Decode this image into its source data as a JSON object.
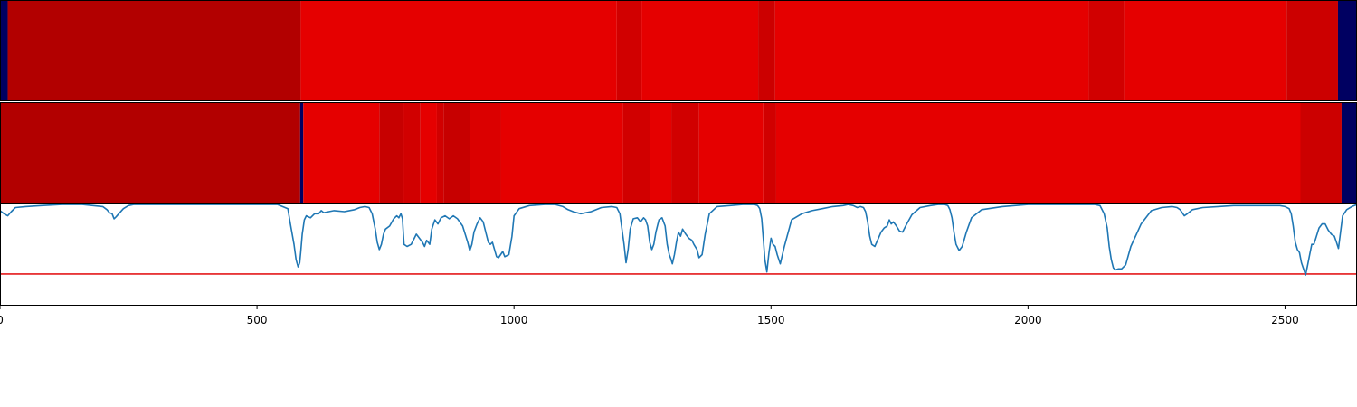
{
  "chart_data": [
    {
      "type": "heatmap",
      "colormap": "seismic",
      "segments": [
        {
          "x0": 0,
          "x1": 15,
          "value": 0.03
        },
        {
          "x0": 15,
          "x1": 585,
          "value": 0.9
        },
        {
          "x0": 585,
          "x1": 1200,
          "value": 0.8
        },
        {
          "x0": 1200,
          "x1": 1248,
          "value": 0.84
        },
        {
          "x0": 1248,
          "x1": 1475,
          "value": 0.8
        },
        {
          "x0": 1475,
          "x1": 1508,
          "value": 0.85
        },
        {
          "x0": 1508,
          "x1": 2118,
          "value": 0.8
        },
        {
          "x0": 2118,
          "x1": 2187,
          "value": 0.84
        },
        {
          "x0": 2187,
          "x1": 2503,
          "value": 0.8
        },
        {
          "x0": 2503,
          "x1": 2603,
          "value": 0.85
        },
        {
          "x0": 2603,
          "x1": 2640,
          "value": 0.03
        }
      ]
    },
    {
      "type": "heatmap",
      "colormap": "seismic",
      "segments": [
        {
          "x0": 0,
          "x1": 584,
          "value": 0.9
        },
        {
          "x0": 584,
          "x1": 590,
          "value": 0.03
        },
        {
          "x0": 590,
          "x1": 738,
          "value": 0.8
        },
        {
          "x0": 738,
          "x1": 785,
          "value": 0.86
        },
        {
          "x0": 785,
          "x1": 818,
          "value": 0.84
        },
        {
          "x0": 818,
          "x1": 850,
          "value": 0.8
        },
        {
          "x0": 850,
          "x1": 863,
          "value": 0.84
        },
        {
          "x0": 863,
          "x1": 915,
          "value": 0.86
        },
        {
          "x0": 915,
          "x1": 975,
          "value": 0.82
        },
        {
          "x0": 975,
          "x1": 1212,
          "value": 0.8
        },
        {
          "x0": 1212,
          "x1": 1265,
          "value": 0.84
        },
        {
          "x0": 1265,
          "x1": 1306,
          "value": 0.8
        },
        {
          "x0": 1306,
          "x1": 1360,
          "value": 0.84
        },
        {
          "x0": 1360,
          "x1": 1485,
          "value": 0.8
        },
        {
          "x0": 1485,
          "x1": 1510,
          "value": 0.84
        },
        {
          "x0": 1510,
          "x1": 2530,
          "value": 0.8
        },
        {
          "x0": 2530,
          "x1": 2610,
          "value": 0.85
        },
        {
          "x0": 2610,
          "x1": 2640,
          "value": 0.03
        }
      ]
    },
    {
      "type": "line",
      "xlim": [
        0,
        2640
      ],
      "ylim": [
        0,
        1
      ],
      "xticks": [
        0,
        500,
        1000,
        1500,
        2000,
        2500
      ],
      "xtick_labels": [
        "0",
        "500",
        "1000",
        "1500",
        "2000",
        "2500"
      ],
      "colors": {
        "series": "#1f77b4",
        "threshold": "#e41a1c"
      },
      "threshold": 0.31,
      "series": [
        {
          "x": [
            0,
            8,
            15,
            22,
            30,
            50,
            80,
            120,
            160,
            200,
            208,
            213,
            218,
            222,
            226,
            231,
            240,
            250,
            260,
            300,
            350,
            400,
            450,
            500,
            540,
            560,
            565,
            572,
            576,
            580,
            583,
            585,
            588,
            592,
            596,
            604,
            612,
            620,
            625,
            630,
            640,
            650,
            670,
            690,
            700,
            710,
            718,
            724,
            730,
            734,
            738,
            742,
            746,
            750,
            758,
            766,
            772,
            776,
            780,
            783,
            786,
            792,
            800,
            806,
            810,
            816,
            822,
            826,
            830,
            836,
            840,
            846,
            852,
            858,
            866,
            874,
            882,
            890,
            900,
            910,
            914,
            918,
            922,
            928,
            934,
            940,
            946,
            950,
            954,
            958,
            962,
            966,
            970,
            974,
            978,
            982,
            990,
            996,
            1000,
            1010,
            1030,
            1060,
            1080,
            1095,
            1105,
            1115,
            1130,
            1150,
            1170,
            1190,
            1200,
            1206,
            1210,
            1214,
            1218,
            1222,
            1226,
            1232,
            1240,
            1246,
            1252,
            1256,
            1260,
            1264,
            1268,
            1272,
            1276,
            1282,
            1288,
            1294,
            1298,
            1302,
            1305,
            1308,
            1312,
            1316,
            1320,
            1324,
            1328,
            1334,
            1340,
            1346,
            1350,
            1356,
            1360,
            1366,
            1372,
            1380,
            1395,
            1420,
            1445,
            1460,
            1468,
            1474,
            1478,
            1482,
            1485,
            1488,
            1492,
            1496,
            1500,
            1504,
            1508,
            1512,
            1518,
            1526,
            1540,
            1560,
            1580,
            1600,
            1620,
            1640,
            1650,
            1660,
            1668,
            1674,
            1680,
            1684,
            1688,
            1692,
            1696,
            1702,
            1708,
            1714,
            1720,
            1726,
            1730,
            1734,
            1738,
            1744,
            1750,
            1756,
            1764,
            1774,
            1790,
            1810,
            1825,
            1838,
            1844,
            1848,
            1852,
            1856,
            1860,
            1866,
            1872,
            1880,
            1890,
            1910,
            1950,
            2000,
            2050,
            2100,
            2130,
            2140,
            2148,
            2154,
            2158,
            2162,
            2166,
            2170,
            2176,
            2182,
            2190,
            2200,
            2220,
            2240,
            2260,
            2280,
            2290,
            2296,
            2300,
            2304,
            2310,
            2320,
            2340,
            2370,
            2400,
            2430,
            2460,
            2490,
            2500,
            2508,
            2512,
            2516,
            2520,
            2524,
            2528,
            2532,
            2536,
            2540,
            2544,
            2548,
            2552,
            2556,
            2560,
            2566,
            2572,
            2578,
            2584,
            2590,
            2596,
            2600,
            2604,
            2608,
            2612,
            2620,
            2630,
            2640
          ],
          "y": [
            0.93,
            0.9,
            0.88,
            0.92,
            0.96,
            0.97,
            0.98,
            0.99,
            0.99,
            0.97,
            0.94,
            0.91,
            0.9,
            0.85,
            0.87,
            0.9,
            0.95,
            0.98,
            0.99,
            0.99,
            0.99,
            0.99,
            0.99,
            0.99,
            0.99,
            0.95,
            0.8,
            0.6,
            0.45,
            0.38,
            0.42,
            0.52,
            0.7,
            0.84,
            0.88,
            0.86,
            0.9,
            0.9,
            0.93,
            0.91,
            0.92,
            0.93,
            0.92,
            0.94,
            0.96,
            0.97,
            0.96,
            0.9,
            0.75,
            0.62,
            0.55,
            0.6,
            0.7,
            0.75,
            0.78,
            0.85,
            0.88,
            0.86,
            0.9,
            0.85,
            0.6,
            0.58,
            0.6,
            0.66,
            0.7,
            0.66,
            0.62,
            0.58,
            0.64,
            0.6,
            0.75,
            0.84,
            0.8,
            0.86,
            0.88,
            0.85,
            0.88,
            0.85,
            0.78,
            0.62,
            0.54,
            0.6,
            0.72,
            0.8,
            0.86,
            0.82,
            0.7,
            0.62,
            0.6,
            0.62,
            0.55,
            0.48,
            0.47,
            0.5,
            0.53,
            0.48,
            0.5,
            0.68,
            0.88,
            0.95,
            0.98,
            0.99,
            0.99,
            0.97,
            0.94,
            0.92,
            0.9,
            0.92,
            0.96,
            0.97,
            0.96,
            0.9,
            0.75,
            0.6,
            0.42,
            0.55,
            0.75,
            0.85,
            0.86,
            0.82,
            0.86,
            0.84,
            0.78,
            0.62,
            0.55,
            0.6,
            0.72,
            0.84,
            0.86,
            0.78,
            0.6,
            0.5,
            0.46,
            0.41,
            0.5,
            0.62,
            0.72,
            0.68,
            0.75,
            0.7,
            0.66,
            0.64,
            0.6,
            0.55,
            0.47,
            0.5,
            0.7,
            0.9,
            0.97,
            0.98,
            0.99,
            0.99,
            0.99,
            0.98,
            0.95,
            0.85,
            0.65,
            0.45,
            0.33,
            0.52,
            0.66,
            0.6,
            0.58,
            0.5,
            0.41,
            0.58,
            0.84,
            0.9,
            0.93,
            0.95,
            0.97,
            0.98,
            0.99,
            0.98,
            0.96,
            0.97,
            0.96,
            0.92,
            0.82,
            0.68,
            0.6,
            0.58,
            0.65,
            0.72,
            0.76,
            0.78,
            0.84,
            0.8,
            0.82,
            0.78,
            0.73,
            0.72,
            0.8,
            0.89,
            0.96,
            0.98,
            0.99,
            0.99,
            0.98,
            0.94,
            0.86,
            0.72,
            0.6,
            0.54,
            0.58,
            0.72,
            0.86,
            0.94,
            0.97,
            0.99,
            0.99,
            0.99,
            0.99,
            0.98,
            0.9,
            0.76,
            0.58,
            0.45,
            0.37,
            0.35,
            0.36,
            0.36,
            0.4,
            0.58,
            0.8,
            0.93,
            0.96,
            0.97,
            0.96,
            0.94,
            0.91,
            0.88,
            0.9,
            0.94,
            0.96,
            0.97,
            0.98,
            0.98,
            0.98,
            0.98,
            0.97,
            0.95,
            0.9,
            0.78,
            0.62,
            0.55,
            0.52,
            0.42,
            0.36,
            0.3,
            0.4,
            0.5,
            0.6,
            0.6,
            0.66,
            0.76,
            0.8,
            0.8,
            0.74,
            0.7,
            0.68,
            0.62,
            0.56,
            0.72,
            0.88,
            0.94,
            0.97,
            0.99
          ]
        }
      ]
    }
  ]
}
